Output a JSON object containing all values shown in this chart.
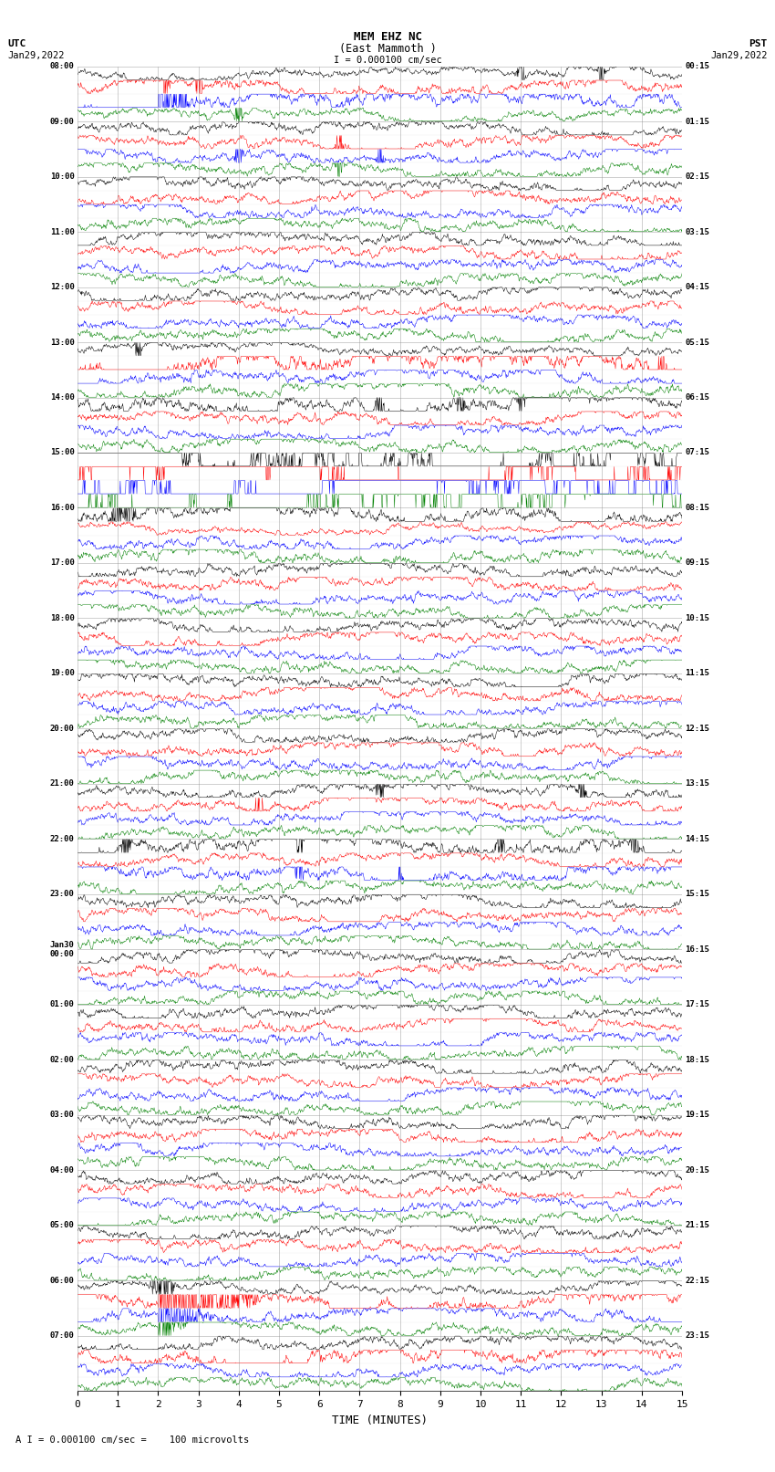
{
  "title_line1": "MEM EHZ NC",
  "title_line2": "(East Mammoth )",
  "scale_label": "I = 0.000100 cm/sec",
  "footer_label": "A I = 0.000100 cm/sec =    100 microvolts",
  "xlabel": "TIME (MINUTES)",
  "left_times": [
    "08:00",
    "09:00",
    "10:00",
    "11:00",
    "12:00",
    "13:00",
    "14:00",
    "15:00",
    "16:00",
    "17:00",
    "18:00",
    "19:00",
    "20:00",
    "21:00",
    "22:00",
    "23:00",
    "Jan30\n00:00",
    "01:00",
    "02:00",
    "03:00",
    "04:00",
    "05:00",
    "06:00",
    "07:00"
  ],
  "right_times": [
    "00:15",
    "01:15",
    "02:15",
    "03:15",
    "04:15",
    "05:15",
    "06:15",
    "07:15",
    "08:15",
    "09:15",
    "10:15",
    "11:15",
    "12:15",
    "13:15",
    "14:15",
    "15:15",
    "16:15",
    "17:15",
    "18:15",
    "19:15",
    "20:15",
    "21:15",
    "22:15",
    "23:15"
  ],
  "colors": [
    "black",
    "red",
    "blue",
    "green"
  ],
  "bg_color": "#ffffff",
  "n_hours": 24,
  "n_colors": 4,
  "n_minutes": 15,
  "fig_width": 8.5,
  "fig_height": 16.13,
  "dpi": 100
}
